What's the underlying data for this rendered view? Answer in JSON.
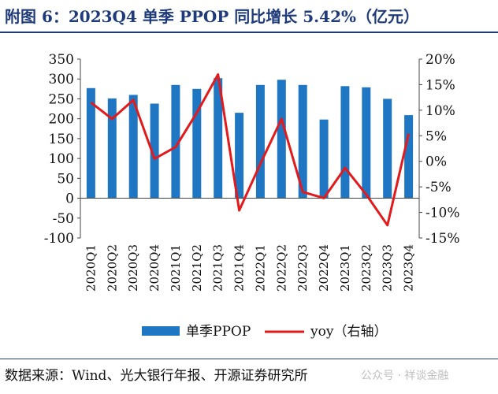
{
  "header": {
    "title": "附图 6：2023Q4 单季 PPOP 同比增长 5.42%（亿元）"
  },
  "footer": {
    "source": "数据来源：Wind、光大银行年报、开源证券研究所",
    "watermark": "公众号 · 祥谈金融"
  },
  "colors": {
    "bar": "#1f77c4",
    "line": "#e31a1c",
    "title": "#1f3b7a",
    "axis": "#444444"
  },
  "chart_data": {
    "type": "bar",
    "categories": [
      "2020Q1",
      "2020Q2",
      "2020Q3",
      "2020Q4",
      "2021Q1",
      "2021Q2",
      "2021Q3",
      "2021Q4",
      "2022Q1",
      "2022Q2",
      "2022Q3",
      "2022Q4",
      "2023Q1",
      "2023Q2",
      "2023Q3",
      "2023Q4"
    ],
    "series": [
      {
        "name": "单季PPOP",
        "type": "bar",
        "axis": "left",
        "values": [
          277,
          251,
          260,
          238,
          285,
          275,
          302,
          215,
          285,
          298,
          285,
          198,
          282,
          279,
          250,
          209
        ]
      },
      {
        "name": "yoy（右轴）",
        "type": "line",
        "axis": "right",
        "values": [
          11.5,
          8.3,
          12.0,
          0.5,
          2.8,
          9.5,
          17.0,
          -9.6,
          -0.5,
          8.3,
          -6.0,
          -7.2,
          -1.3,
          -6.5,
          -12.5,
          5.42
        ]
      }
    ],
    "y_left": {
      "min": -100,
      "max": 350,
      "ticks": [
        "-100",
        "-50",
        "0",
        "50",
        "100",
        "150",
        "200",
        "250",
        "300",
        "350"
      ]
    },
    "y_right": {
      "min": -15,
      "max": 20,
      "ticks": [
        "-15%",
        "-10%",
        "-5%",
        "0%",
        "5%",
        "10%",
        "15%",
        "20%"
      ]
    },
    "legend_position": "bottom",
    "grid": false
  }
}
